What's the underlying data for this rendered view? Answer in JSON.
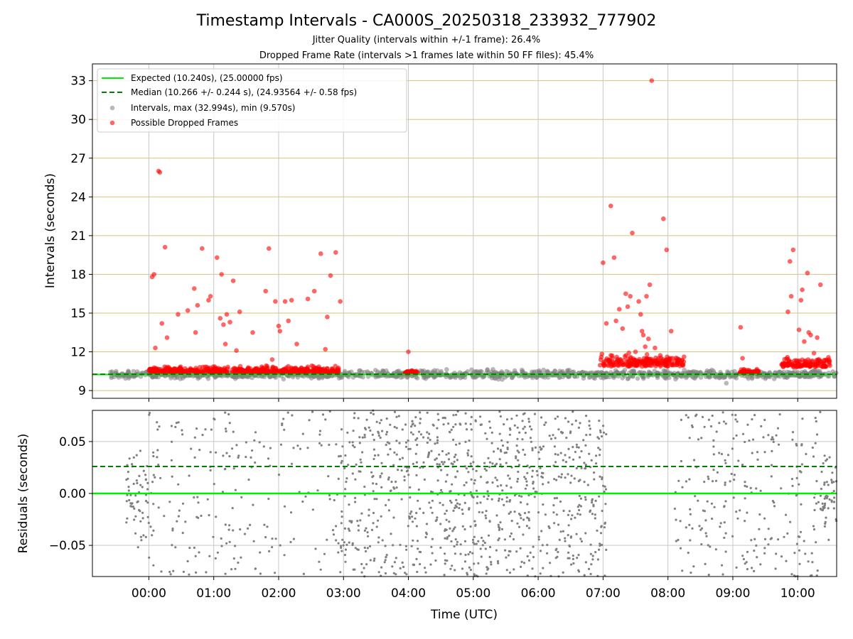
{
  "title": "Timestamp Intervals - CA000S_20250318_233932_777902",
  "subtitle1": "Jitter Quality (intervals within +/-1 frame): 26.4%",
  "subtitle2": "Dropped Frame Rate (intervals >1 frames late within 50 FF files): 45.4%",
  "colors": {
    "expected": "#00ee00",
    "median": "#007f00",
    "intervals": "#808080",
    "dropped": "#ff0000",
    "hgrid_top": "#d9c27a",
    "grid": "#c8c8c8"
  },
  "chart_data": [
    {
      "type": "scatter",
      "panel": "intervals",
      "ylabel": "Intervals (seconds)",
      "xlabel": "",
      "x_range_hours": [
        -0.87,
        10.6
      ],
      "ylim": [
        8.4,
        34.3
      ],
      "yticks": [
        9,
        12,
        15,
        18,
        21,
        24,
        27,
        30,
        33
      ],
      "legend": {
        "placement": "top-left",
        "entries": [
          "Expected (10.240s), (25.00000 fps)",
          "Median (10.266 +/- 0.244 s), (24.93564 +/- 0.58 fps)",
          "Intervals, max (32.994s), min (9.570s)",
          "Possible Dropped Frames"
        ]
      },
      "expected_interval": 10.24,
      "median_interval": 10.266,
      "max_interval": 32.994,
      "min_interval": 9.57,
      "baseline_segments": [
        {
          "start": -0.6,
          "end": 10.6,
          "center": 10.25,
          "spread": 0.15
        }
      ],
      "dropped_clusters": [
        {
          "start": 0.0,
          "end": 2.95,
          "center": 10.45,
          "spread": 0.22
        },
        {
          "start": 3.95,
          "end": 4.15,
          "center": 10.35,
          "spread": 0.12
        },
        {
          "start": 6.95,
          "end": 8.25,
          "center": 10.95,
          "spread": 0.45
        },
        {
          "start": 9.1,
          "end": 9.4,
          "center": 10.35,
          "spread": 0.15
        },
        {
          "start": 9.75,
          "end": 10.5,
          "center": 10.9,
          "spread": 0.35
        }
      ],
      "dropped_outliers": [
        [
          0.05,
          17.8
        ],
        [
          0.08,
          18.0
        ],
        [
          0.1,
          12.3
        ],
        [
          0.15,
          26.0
        ],
        [
          0.17,
          25.9
        ],
        [
          0.2,
          14.2
        ],
        [
          0.25,
          20.1
        ],
        [
          0.28,
          13.1
        ],
        [
          0.45,
          14.9
        ],
        [
          0.6,
          15.2
        ],
        [
          0.7,
          16.9
        ],
        [
          0.72,
          13.5
        ],
        [
          0.75,
          15.6
        ],
        [
          0.82,
          20.0
        ],
        [
          0.92,
          16.0
        ],
        [
          0.95,
          16.3
        ],
        [
          1.05,
          19.3
        ],
        [
          1.1,
          14.6
        ],
        [
          1.12,
          18.0
        ],
        [
          1.15,
          14.1
        ],
        [
          1.18,
          12.6
        ],
        [
          1.2,
          14.9
        ],
        [
          1.25,
          14.3
        ],
        [
          1.3,
          17.5
        ],
        [
          1.35,
          12.1
        ],
        [
          1.4,
          15.1
        ],
        [
          1.6,
          13.5
        ],
        [
          1.8,
          16.7
        ],
        [
          1.85,
          20.0
        ],
        [
          1.9,
          11.4
        ],
        [
          1.95,
          15.9
        ],
        [
          2.0,
          14.0
        ],
        [
          2.02,
          13.6
        ],
        [
          2.1,
          15.9
        ],
        [
          2.15,
          14.4
        ],
        [
          2.2,
          16.0
        ],
        [
          2.28,
          12.6
        ],
        [
          2.45,
          16.1
        ],
        [
          2.55,
          16.7
        ],
        [
          2.65,
          19.6
        ],
        [
          2.72,
          12.2
        ],
        [
          2.75,
          14.7
        ],
        [
          2.8,
          17.9
        ],
        [
          2.88,
          19.7
        ],
        [
          2.95,
          15.9
        ],
        [
          4.0,
          12.0
        ],
        [
          7.0,
          18.9
        ],
        [
          7.05,
          14.2
        ],
        [
          7.12,
          23.3
        ],
        [
          7.17,
          19.3
        ],
        [
          7.2,
          14.4
        ],
        [
          7.25,
          15.3
        ],
        [
          7.3,
          13.8
        ],
        [
          7.35,
          16.5
        ],
        [
          7.38,
          15.5
        ],
        [
          7.42,
          16.3
        ],
        [
          7.45,
          21.2
        ],
        [
          7.5,
          12.0
        ],
        [
          7.55,
          15.9
        ],
        [
          7.58,
          14.9
        ],
        [
          7.6,
          13.6
        ],
        [
          7.62,
          13.3
        ],
        [
          7.65,
          12.4
        ],
        [
          7.67,
          16.3
        ],
        [
          7.7,
          13.0
        ],
        [
          7.72,
          17.2
        ],
        [
          7.75,
          33.0
        ],
        [
          7.8,
          12.3
        ],
        [
          7.93,
          22.3
        ],
        [
          7.98,
          19.9
        ],
        [
          8.05,
          13.6
        ],
        [
          9.12,
          13.9
        ],
        [
          9.15,
          11.5
        ],
        [
          9.85,
          15.1
        ],
        [
          9.88,
          19.0
        ],
        [
          9.9,
          16.3
        ],
        [
          9.93,
          19.9
        ],
        [
          10.0,
          11.0
        ],
        [
          10.02,
          13.7
        ],
        [
          10.05,
          16.0
        ],
        [
          10.07,
          16.8
        ],
        [
          10.1,
          12.8
        ],
        [
          10.15,
          18.1
        ],
        [
          10.17,
          13.5
        ],
        [
          10.2,
          13.3
        ],
        [
          10.25,
          11.9
        ],
        [
          10.3,
          13.1
        ],
        [
          10.35,
          17.2
        ]
      ]
    },
    {
      "type": "scatter",
      "panel": "residuals",
      "ylabel": "Residuals (seconds)",
      "xlabel": "Time (UTC)",
      "x_range_hours": [
        -0.87,
        10.6
      ],
      "ylim": [
        -0.08,
        0.08
      ],
      "yticks": [
        -0.05,
        0.0,
        0.05
      ],
      "ytick_labels": [
        "−0.05",
        "0.00",
        "0.05"
      ],
      "xticks": [
        0,
        1,
        2,
        3,
        4,
        5,
        6,
        7,
        8,
        9,
        10
      ],
      "xtick_labels": [
        "00:00",
        "01:00",
        "02:00",
        "03:00",
        "04:00",
        "05:00",
        "06:00",
        "07:00",
        "08:00",
        "09:00",
        "10:00"
      ],
      "expected_residual": 0.0,
      "median_residual": 0.026,
      "dense_segments": [
        {
          "start": -0.35,
          "end": 0.0,
          "sd": 0.02,
          "n": 60
        },
        {
          "start": 10.35,
          "end": 10.6,
          "sd": 0.02,
          "n": 50
        }
      ],
      "sparse_segments": [
        {
          "start": 0.0,
          "end": 2.95,
          "n": 210
        },
        {
          "start": 2.95,
          "end": 4.0,
          "n": 210
        },
        {
          "start": 4.0,
          "end": 7.05,
          "n": 700
        },
        {
          "start": 8.1,
          "end": 10.35,
          "n": 240
        }
      ]
    }
  ]
}
